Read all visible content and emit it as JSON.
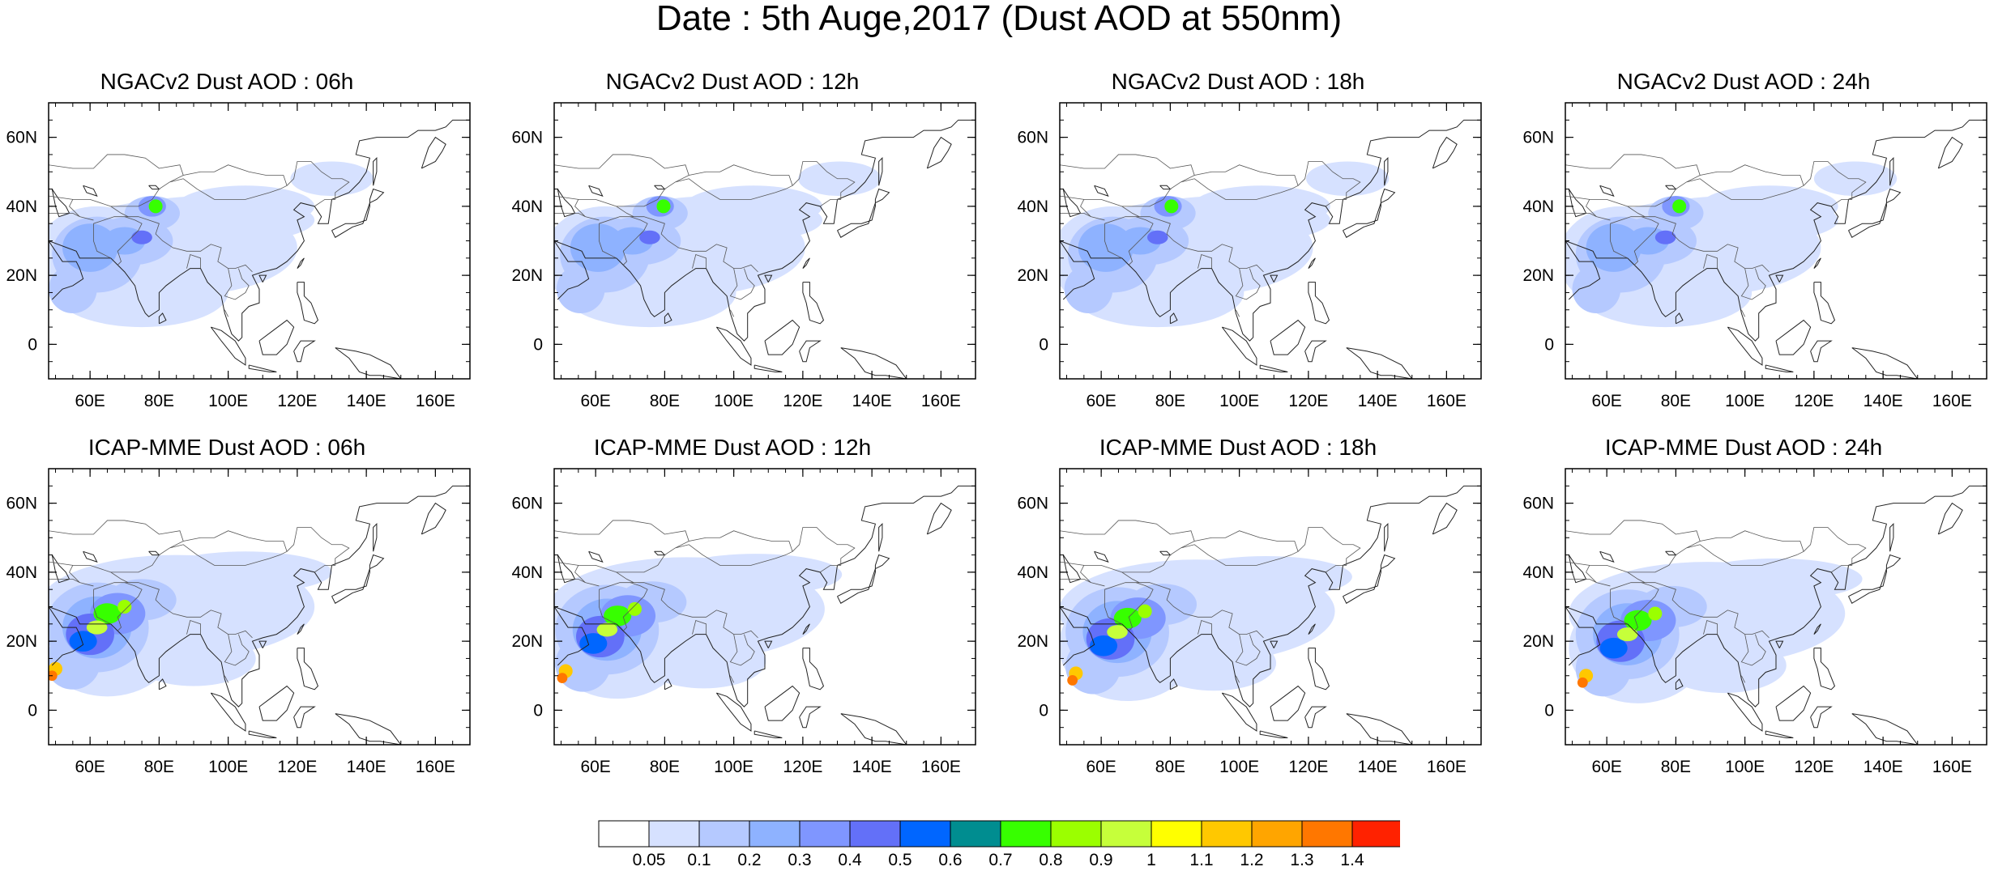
{
  "title": "Date : 5th Auge,2017 (Dust AOD at 550nm)",
  "map": {
    "lon_range": [
      48,
      170
    ],
    "lat_range": [
      -10,
      70
    ],
    "xticks": [
      {
        "value": 60,
        "label": "60E"
      },
      {
        "value": 80,
        "label": "80E"
      },
      {
        "value": 100,
        "label": "100E"
      },
      {
        "value": 120,
        "label": "120E"
      },
      {
        "value": 140,
        "label": "140E"
      },
      {
        "value": 160,
        "label": "160E"
      }
    ],
    "yticks": [
      {
        "value": 60,
        "label": "60N"
      },
      {
        "value": 40,
        "label": "40N"
      },
      {
        "value": 20,
        "label": "20N"
      },
      {
        "value": 0,
        "label": "0"
      }
    ]
  },
  "panels": [
    {
      "title": "NGACv2 Dust AOD : 06h",
      "model": "ngac",
      "hour": 6
    },
    {
      "title": "NGACv2 Dust AOD : 12h",
      "model": "ngac",
      "hour": 12
    },
    {
      "title": "NGACv2 Dust AOD : 18h",
      "model": "ngac",
      "hour": 18
    },
    {
      "title": "NGACv2 Dust AOD : 24h",
      "model": "ngac",
      "hour": 24
    },
    {
      "title": "ICAP-MME Dust AOD : 06h",
      "model": "icap",
      "hour": 6
    },
    {
      "title": "ICAP-MME Dust AOD : 12h",
      "model": "icap",
      "hour": 12
    },
    {
      "title": "ICAP-MME Dust AOD : 18h",
      "model": "icap",
      "hour": 18
    },
    {
      "title": "ICAP-MME Dust AOD : 24h",
      "model": "icap",
      "hour": 24
    }
  ],
  "colorbar": {
    "labels": [
      "0.05",
      "0.1",
      "0.2",
      "0.3",
      "0.4",
      "0.5",
      "0.6",
      "0.7",
      "0.8",
      "0.9",
      "1",
      "1.1",
      "1.2",
      "1.3",
      "1.4"
    ],
    "colors": [
      "#ffffff",
      "#d6e1ff",
      "#b5c9ff",
      "#8eb2ff",
      "#7f96ff",
      "#6370f8",
      "#0066ff",
      "#008d90",
      "#37ff00",
      "#9bff00",
      "#c6ff3a",
      "#ffff00",
      "#ffc800",
      "#ffa500",
      "#ff7700",
      "#ff2200"
    ]
  }
}
